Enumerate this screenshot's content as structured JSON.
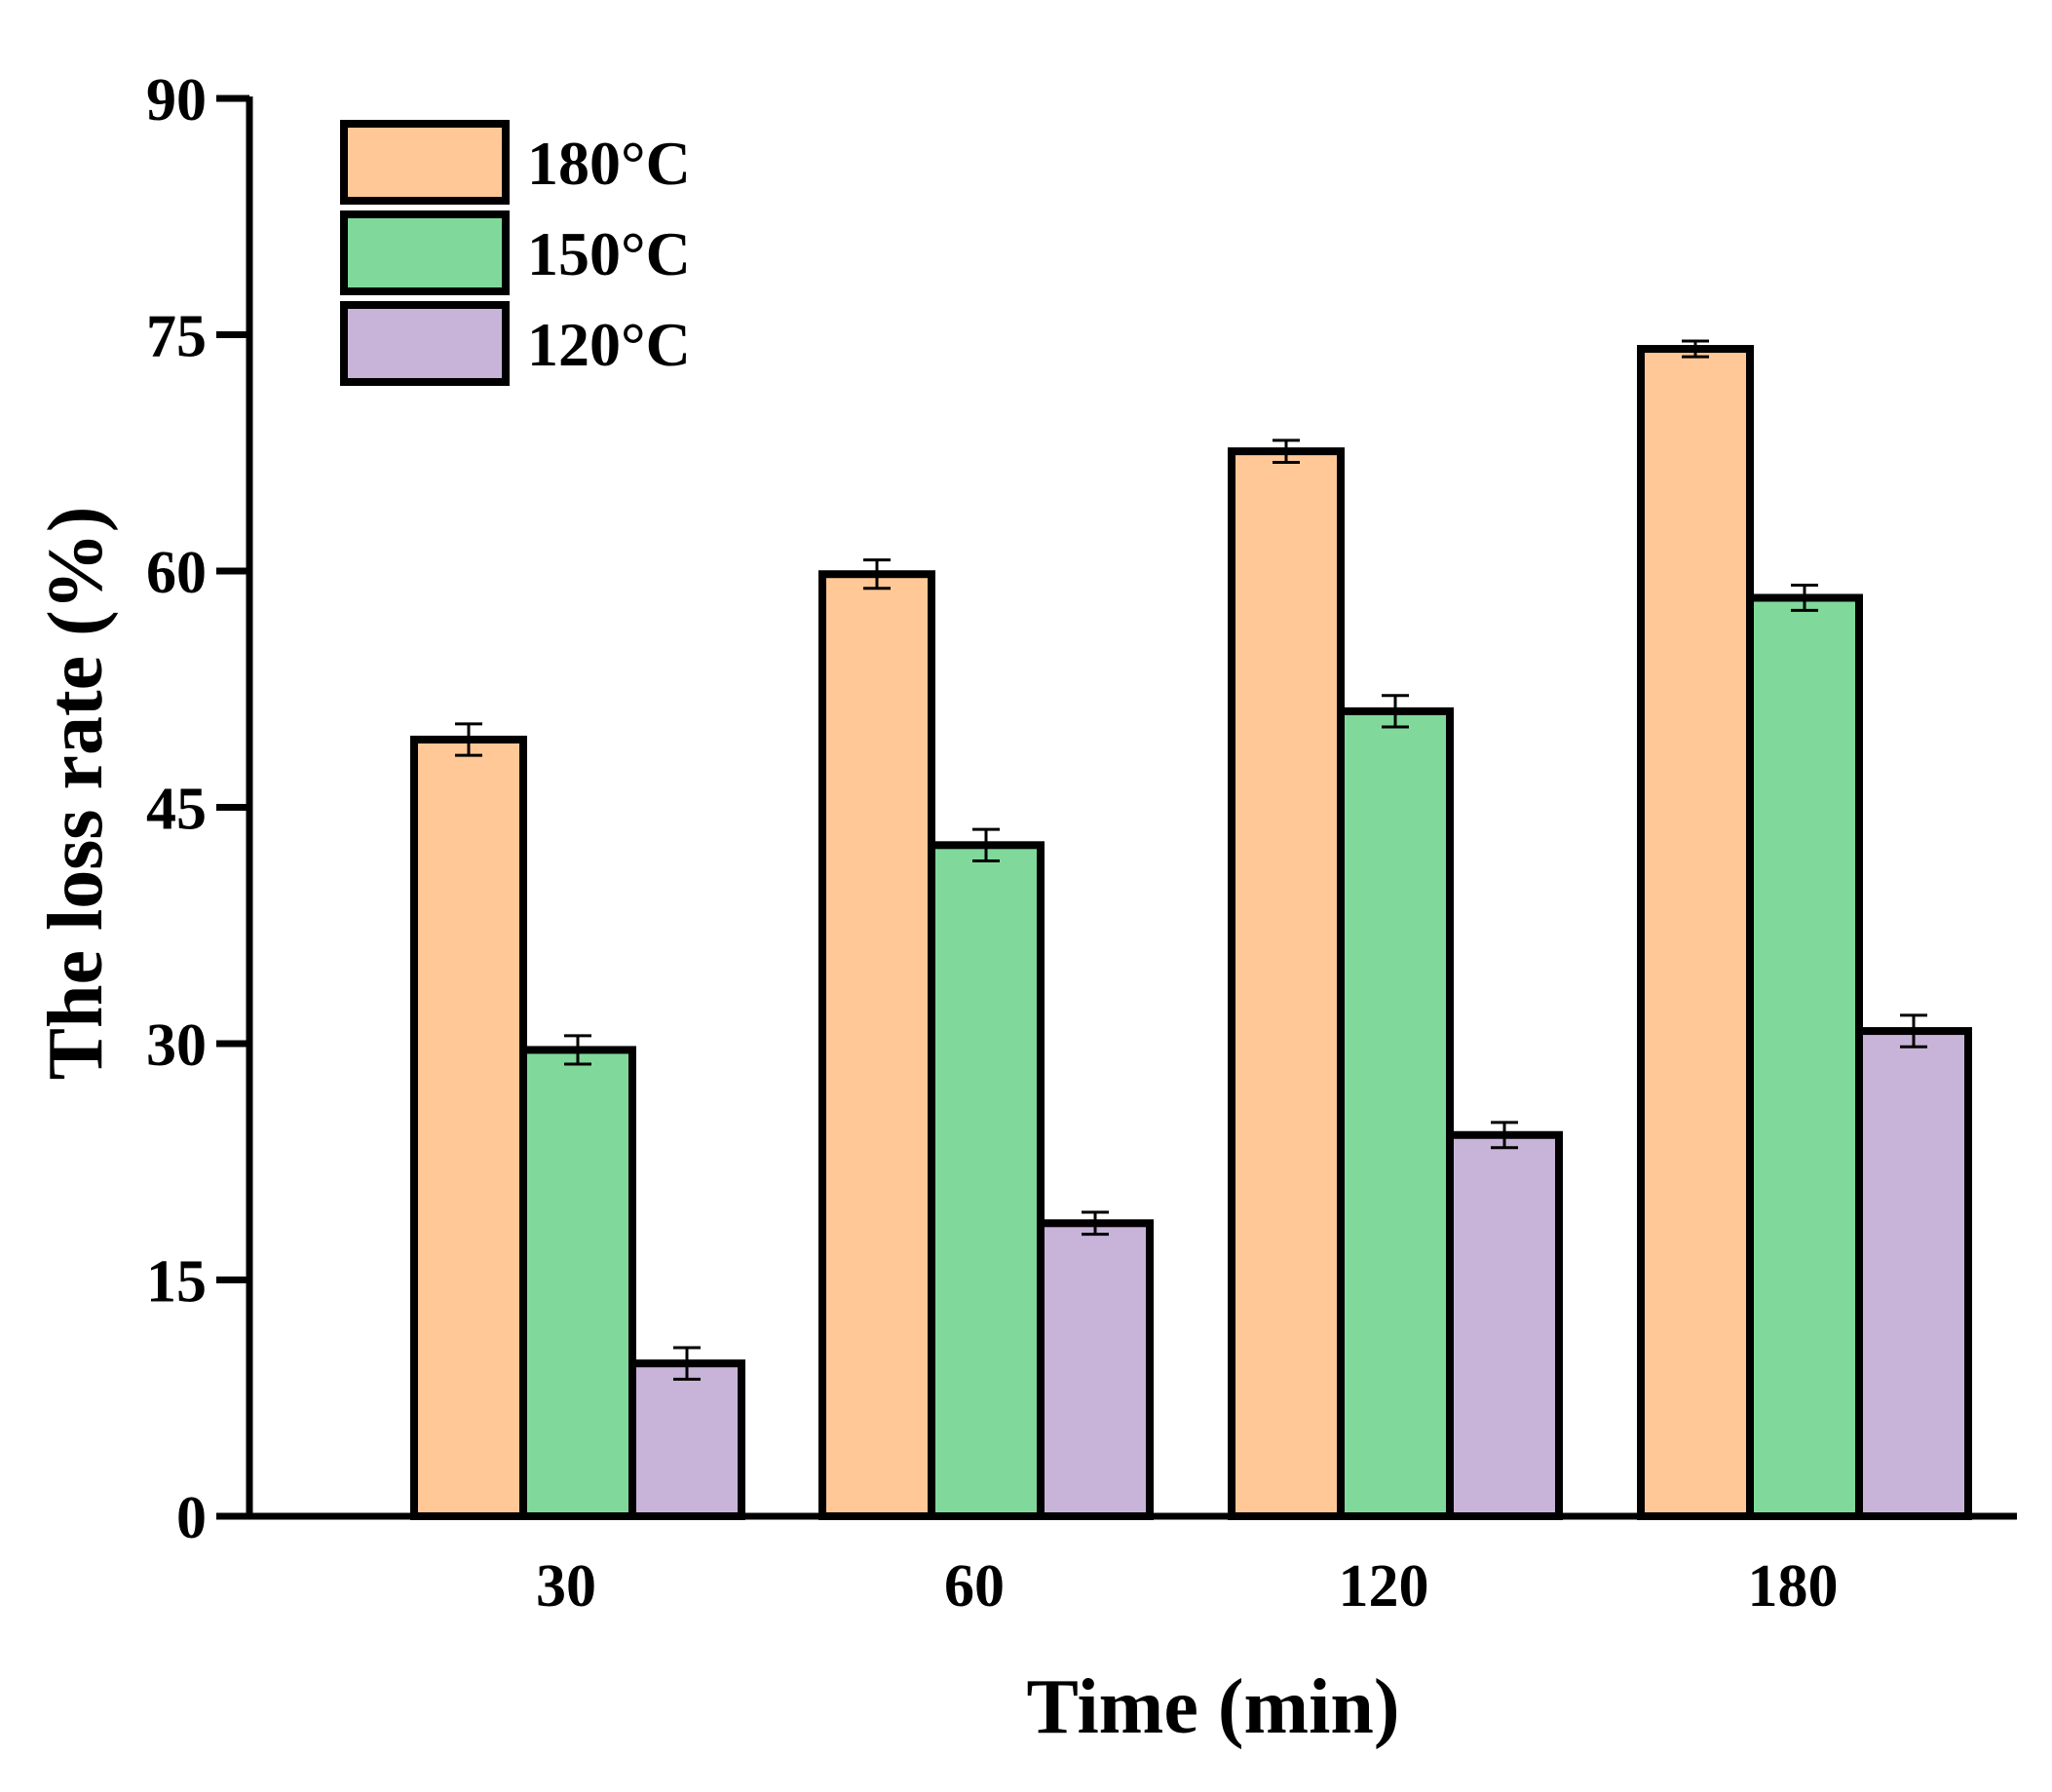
{
  "colors": {
    "series_180": "#FFC896",
    "series_150": "#80D99A",
    "series_120": "#C8B4D8",
    "axis": "#000000"
  },
  "chart_data": {
    "type": "bar",
    "title": "",
    "xlabel": "Time (min)",
    "ylabel": "The loss rate (%)",
    "categories": [
      "30",
      "60",
      "120",
      "180"
    ],
    "ylim": [
      0,
      90
    ],
    "yticks": [
      "0",
      "15",
      "30",
      "45",
      "60",
      "75",
      "90"
    ],
    "legend_position": "top-left",
    "grid": false,
    "series": [
      {
        "name": "180°C",
        "values": [
          49.3,
          59.8,
          67.6,
          74.1
        ],
        "errors": [
          1.0,
          0.9,
          0.7,
          0.5
        ]
      },
      {
        "name": "150°C",
        "values": [
          29.6,
          42.6,
          51.1,
          58.3
        ],
        "errors": [
          0.9,
          1.0,
          1.0,
          0.8
        ]
      },
      {
        "name": "120°C",
        "values": [
          9.7,
          18.6,
          24.2,
          30.8
        ],
        "errors": [
          1.0,
          0.7,
          0.8,
          1.0
        ]
      }
    ]
  }
}
